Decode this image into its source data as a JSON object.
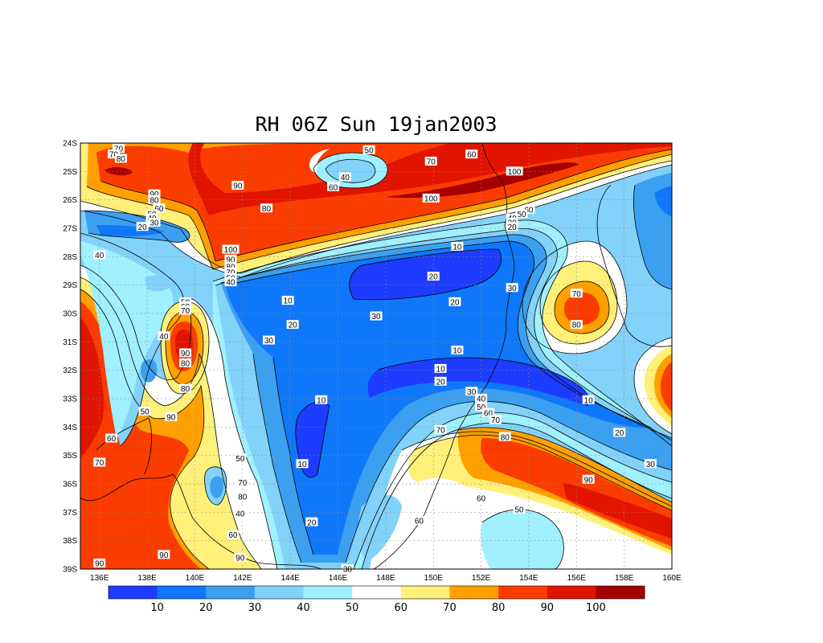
{
  "chart_data": {
    "type": "heatmap",
    "title": "RH 06Z Sun 19jan2003",
    "x_ticks": [
      "136E",
      "138E",
      "140E",
      "142E",
      "144E",
      "146E",
      "148E",
      "150E",
      "152E",
      "154E",
      "156E",
      "158E",
      "160E"
    ],
    "y_ticks": [
      "24S",
      "25S",
      "26S",
      "27S",
      "28S",
      "29S",
      "30S",
      "31S",
      "32S",
      "33S",
      "34S",
      "35S",
      "36S",
      "37S",
      "38S",
      "39S"
    ],
    "xlim": [
      135.2,
      160
    ],
    "ylim": [
      -39,
      -24
    ],
    "grid": "dotted",
    "colorbar": {
      "levels": [
        "10",
        "20",
        "30",
        "40",
        "50",
        "60",
        "70",
        "80",
        "90",
        "100"
      ],
      "colors": [
        "#1e3cff",
        "#0f78fa",
        "#3ca0f0",
        "#82d2fa",
        "#a0f0ff",
        "#ffffff",
        "#fff07a",
        "#ffa000",
        "#fa3c00",
        "#e11400",
        "#a50000"
      ]
    },
    "contour_labels": [
      {
        "lon": 136.8,
        "lat": -24.2,
        "text": "70"
      },
      {
        "lon": 136.6,
        "lat": -24.4,
        "text": "70"
      },
      {
        "lon": 136.9,
        "lat": -24.55,
        "text": "80"
      },
      {
        "lon": 138.3,
        "lat": -25.8,
        "text": "90"
      },
      {
        "lon": 138.3,
        "lat": -26.0,
        "text": "80"
      },
      {
        "lon": 138.5,
        "lat": -26.3,
        "text": "60"
      },
      {
        "lon": 138.2,
        "lat": -26.5,
        "text": "50"
      },
      {
        "lon": 138.2,
        "lat": -26.65,
        "text": "40"
      },
      {
        "lon": 138.3,
        "lat": -26.8,
        "text": "30"
      },
      {
        "lon": 137.8,
        "lat": -26.95,
        "text": "20"
      },
      {
        "lon": 136.0,
        "lat": -27.95,
        "text": "40"
      },
      {
        "lon": 141.8,
        "lat": -25.5,
        "text": "90"
      },
      {
        "lon": 143.0,
        "lat": -26.3,
        "text": "80"
      },
      {
        "lon": 141.5,
        "lat": -27.75,
        "text": "100"
      },
      {
        "lon": 141.5,
        "lat": -28.1,
        "text": "90"
      },
      {
        "lon": 141.5,
        "lat": -28.35,
        "text": "80"
      },
      {
        "lon": 141.5,
        "lat": -28.55,
        "text": "70"
      },
      {
        "lon": 141.5,
        "lat": -28.75,
        "text": "50"
      },
      {
        "lon": 141.5,
        "lat": -28.9,
        "text": "40"
      },
      {
        "lon": 147.3,
        "lat": -24.25,
        "text": "50"
      },
      {
        "lon": 146.3,
        "lat": -25.2,
        "text": "40"
      },
      {
        "lon": 145.8,
        "lat": -25.55,
        "text": "60"
      },
      {
        "lon": 151.6,
        "lat": -24.4,
        "text": "60"
      },
      {
        "lon": 149.9,
        "lat": -24.65,
        "text": "70"
      },
      {
        "lon": 153.4,
        "lat": -25.0,
        "text": "100"
      },
      {
        "lon": 149.9,
        "lat": -25.95,
        "text": "100"
      },
      {
        "lon": 154.0,
        "lat": -26.35,
        "text": "60"
      },
      {
        "lon": 153.7,
        "lat": -26.5,
        "text": "50"
      },
      {
        "lon": 153.3,
        "lat": -26.65,
        "text": "40"
      },
      {
        "lon": 153.3,
        "lat": -26.8,
        "text": "30"
      },
      {
        "lon": 153.3,
        "lat": -26.95,
        "text": "20"
      },
      {
        "lon": 151.0,
        "lat": -27.65,
        "text": "10"
      },
      {
        "lon": 150.0,
        "lat": -28.7,
        "text": "20"
      },
      {
        "lon": 153.3,
        "lat": -29.1,
        "text": "30"
      },
      {
        "lon": 150.9,
        "lat": -29.6,
        "text": "20"
      },
      {
        "lon": 143.9,
        "lat": -29.55,
        "text": "10"
      },
      {
        "lon": 147.6,
        "lat": -30.1,
        "text": "30"
      },
      {
        "lon": 144.1,
        "lat": -30.4,
        "text": "20"
      },
      {
        "lon": 143.1,
        "lat": -30.95,
        "text": "30"
      },
      {
        "lon": 151.0,
        "lat": -31.3,
        "text": "10"
      },
      {
        "lon": 150.3,
        "lat": -31.95,
        "text": "10"
      },
      {
        "lon": 150.3,
        "lat": -32.4,
        "text": "20"
      },
      {
        "lon": 151.6,
        "lat": -32.75,
        "text": "30"
      },
      {
        "lon": 152.0,
        "lat": -33.0,
        "text": "40"
      },
      {
        "lon": 152.0,
        "lat": -33.3,
        "text": "50"
      },
      {
        "lon": 152.3,
        "lat": -33.5,
        "text": "60"
      },
      {
        "lon": 152.6,
        "lat": -33.75,
        "text": "70"
      },
      {
        "lon": 150.3,
        "lat": -34.1,
        "text": "70"
      },
      {
        "lon": 153.0,
        "lat": -34.35,
        "text": "80"
      },
      {
        "lon": 145.3,
        "lat": -33.05,
        "text": "10"
      },
      {
        "lon": 156.5,
        "lat": -33.05,
        "text": "10"
      },
      {
        "lon": 157.8,
        "lat": -34.2,
        "text": "20"
      },
      {
        "lon": 159.1,
        "lat": -35.3,
        "text": "30"
      },
      {
        "lon": 156.5,
        "lat": -35.85,
        "text": "90"
      },
      {
        "lon": 152.0,
        "lat": -36.5,
        "text": "60"
      },
      {
        "lon": 153.6,
        "lat": -36.9,
        "text": "50"
      },
      {
        "lon": 149.4,
        "lat": -37.3,
        "text": "60"
      },
      {
        "lon": 144.9,
        "lat": -37.35,
        "text": "20"
      },
      {
        "lon": 144.5,
        "lat": -35.3,
        "text": "10"
      },
      {
        "lon": 146.4,
        "lat": -39.0,
        "text": "30"
      },
      {
        "lon": 156.0,
        "lat": -29.3,
        "text": "70"
      },
      {
        "lon": 156.0,
        "lat": -30.4,
        "text": "80"
      },
      {
        "lon": 138.7,
        "lat": -30.8,
        "text": "40"
      },
      {
        "lon": 139.6,
        "lat": -29.6,
        "text": "50"
      },
      {
        "lon": 139.6,
        "lat": -29.75,
        "text": "60"
      },
      {
        "lon": 139.6,
        "lat": -29.9,
        "text": "70"
      },
      {
        "lon": 139.6,
        "lat": -31.4,
        "text": "90"
      },
      {
        "lon": 139.6,
        "lat": -31.75,
        "text": "80"
      },
      {
        "lon": 139.6,
        "lat": -32.65,
        "text": "80"
      },
      {
        "lon": 139.0,
        "lat": -33.65,
        "text": "90"
      },
      {
        "lon": 137.9,
        "lat": -33.45,
        "text": "50"
      },
      {
        "lon": 136.5,
        "lat": -34.4,
        "text": "60"
      },
      {
        "lon": 136.0,
        "lat": -35.25,
        "text": "70"
      },
      {
        "lon": 141.9,
        "lat": -35.1,
        "text": "50"
      },
      {
        "lon": 142.0,
        "lat": -35.95,
        "text": "70"
      },
      {
        "lon": 142.0,
        "lat": -36.45,
        "text": "80"
      },
      {
        "lon": 141.9,
        "lat": -37.05,
        "text": "40"
      },
      {
        "lon": 141.6,
        "lat": -37.8,
        "text": "60"
      },
      {
        "lon": 141.9,
        "lat": -38.6,
        "text": "90"
      },
      {
        "lon": 138.7,
        "lat": -38.5,
        "text": "90"
      },
      {
        "lon": 136.0,
        "lat": -38.8,
        "text": "90"
      }
    ]
  }
}
